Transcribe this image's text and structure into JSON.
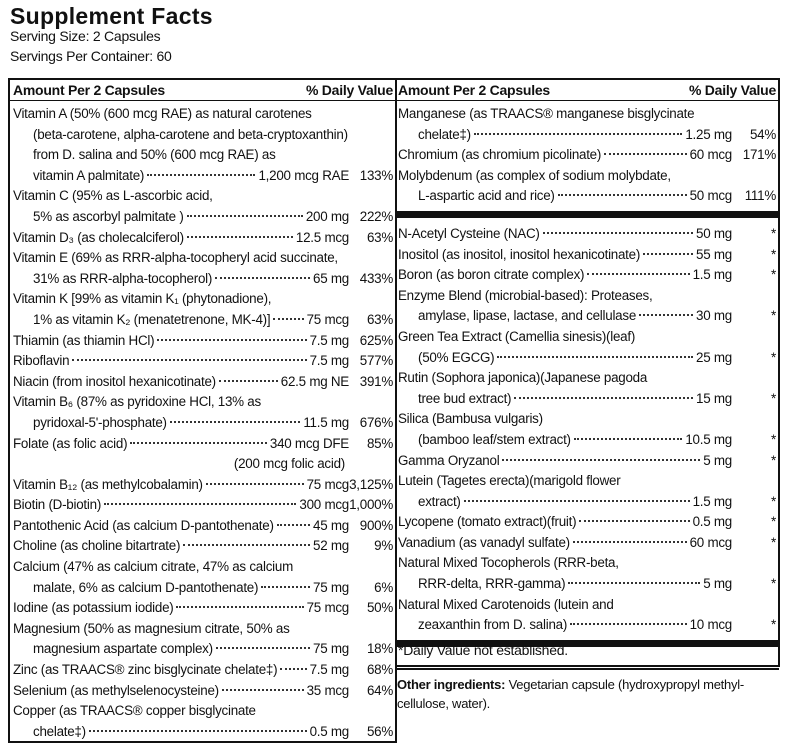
{
  "header": {
    "title": "Supplement Facts",
    "serving_size": "Serving Size: 2 Capsules",
    "servings_per_container": "Servings Per Container: 60"
  },
  "left": {
    "col_amount": "Amount Per 2 Capsules",
    "col_dv": "% Daily Value",
    "items": [
      {
        "lines": [
          "Vitamin A (50% (600 mcg RAE) as natural carotenes",
          "(beta-carotene, alpha-carotene and beta-cryptoxanthin)",
          "from D. salina and 50% (600 mcg RAE) as",
          "vitamin A palmitate)"
        ],
        "amount": "1,200 mcg RAE",
        "dv": "133%"
      },
      {
        "lines": [
          "Vitamin C (95% as L-ascorbic acid,",
          "5% as ascorbyl palmitate )"
        ],
        "amount": "200 mg",
        "dv": "222%"
      },
      {
        "lines": [
          "Vitamin D₃ (as cholecalciferol)"
        ],
        "amount": "12.5 mcg",
        "dv": "63%"
      },
      {
        "lines": [
          "Vitamin E (69% as RRR-alpha-tocopheryl acid succinate,",
          "31% as RRR-alpha-tocopherol)"
        ],
        "amount": "65 mg",
        "dv": "433%"
      },
      {
        "lines": [
          "Vitamin K [99% as vitamin K₁ (phytonadione),",
          "1% as vitamin K₂ (menatetrenone, MK-4)]"
        ],
        "amount": "75 mcg",
        "dv": "63%"
      },
      {
        "lines": [
          "Thiamin (as thiamin HCl)"
        ],
        "amount": "7.5 mg",
        "dv": "625%"
      },
      {
        "lines": [
          "Riboflavin"
        ],
        "amount": "7.5 mg",
        "dv": "577%"
      },
      {
        "lines": [
          "Niacin (from inositol hexanicotinate)"
        ],
        "amount": "62.5 mg NE",
        "dv": "391%"
      },
      {
        "lines": [
          "Vitamin B₆ (87% as pyridoxine HCl, 13% as",
          "pyridoxal-5'-phosphate)"
        ],
        "amount": "11.5 mg",
        "dv": "676%"
      },
      {
        "lines": [
          "Folate (as folic acid)"
        ],
        "amount": "340 mcg DFE",
        "dv": "85%",
        "note": "(200 mcg folic acid)"
      },
      {
        "lines": [
          "Vitamin B₁₂ (as methylcobalamin)"
        ],
        "amount": "75 mcg",
        "dv": "3,125%"
      },
      {
        "lines": [
          "Biotin (D-biotin)"
        ],
        "amount": "300 mcg",
        "dv": "1,000%"
      },
      {
        "lines": [
          "Pantothenic Acid (as calcium D-pantothenate)"
        ],
        "amount": "45 mg",
        "dv": "900%"
      },
      {
        "lines": [
          "Choline (as choline bitartrate)"
        ],
        "amount": "52 mg",
        "dv": "9%"
      },
      {
        "lines": [
          "Calcium (47% as calcium citrate, 47% as calcium",
          "malate, 6% as calcium D-pantothenate)"
        ],
        "amount": "75 mg",
        "dv": "6%"
      },
      {
        "lines": [
          "Iodine (as potassium iodide)"
        ],
        "amount": "75 mcg",
        "dv": "50%"
      },
      {
        "lines": [
          "Magnesium (50% as magnesium citrate, 50% as",
          "magnesium aspartate complex)"
        ],
        "amount": "75 mg",
        "dv": "18%"
      },
      {
        "lines": [
          "Zinc (as TRAACS® zinc bisglycinate chelate‡)"
        ],
        "amount": "7.5 mg",
        "dv": "68%"
      },
      {
        "lines": [
          "Selenium (as methylselenocysteine)"
        ],
        "amount": "35 mcg",
        "dv": "64%"
      },
      {
        "lines": [
          "Copper (as TRAACS® copper bisglycinate",
          "chelate‡)"
        ],
        "amount": "0.5 mg",
        "dv": "56%"
      }
    ]
  },
  "right": {
    "col_amount": "Amount Per 2 Capsules",
    "col_dv": "% Daily Value",
    "items": [
      {
        "lines": [
          "Manganese (as TRAACS® manganese bisglycinate",
          "chelate‡)"
        ],
        "amount": "1.25 mg",
        "dv": "54%"
      },
      {
        "lines": [
          "Chromium (as chromium picolinate)"
        ],
        "amount": "60 mcg",
        "dv": "171%"
      },
      {
        "lines": [
          "Molybdenum (as complex of sodium molybdate,",
          "L-aspartic acid and rice)"
        ],
        "amount": "50 mcg",
        "dv": "111%"
      }
    ],
    "other_items": [
      {
        "lines": [
          "N-Acetyl Cysteine (NAC)"
        ],
        "amount": "50 mg",
        "dv": "*"
      },
      {
        "lines": [
          "Inositol (as inositol, inositol hexanicotinate)"
        ],
        "amount": "55 mg",
        "dv": "*"
      },
      {
        "lines": [
          "Boron (as boron citrate complex)"
        ],
        "amount": "1.5 mg",
        "dv": "*"
      },
      {
        "lines": [
          "Enzyme Blend (microbial-based): Proteases,",
          "amylase, lipase, lactase, and cellulase"
        ],
        "amount": "30 mg",
        "dv": "*"
      },
      {
        "lines": [
          "Green Tea Extract (Camellia sinesis)(leaf)",
          "(50% EGCG)"
        ],
        "amount": "25 mg",
        "dv": "*"
      },
      {
        "lines": [
          "Rutin (Sophora japonica)(Japanese pagoda",
          "tree bud extract)"
        ],
        "amount": "15 mg",
        "dv": "*"
      },
      {
        "lines": [
          "Silica (Bambusa vulgaris)",
          "(bamboo leaf/stem extract)"
        ],
        "amount": "10.5 mg",
        "dv": "*"
      },
      {
        "lines": [
          "Gamma Oryzanol"
        ],
        "amount": "5 mg",
        "dv": "*"
      },
      {
        "lines": [
          "Lutein (Tagetes erecta)(marigold flower",
          "extract)"
        ],
        "amount": "1.5 mg",
        "dv": "*"
      },
      {
        "lines": [
          "Lycopene (tomato extract)(fruit)"
        ],
        "amount": "0.5 mg",
        "dv": "*"
      },
      {
        "lines": [
          "Vanadium (as vanadyl sulfate)"
        ],
        "amount": "60 mcg",
        "dv": "*"
      },
      {
        "lines": [
          "Natural Mixed Tocopherols (RRR-beta,",
          "RRR-delta, RRR-gamma)"
        ],
        "amount": "5 mg",
        "dv": "*"
      },
      {
        "lines": [
          "Natural Mixed Carotenoids (lutein and",
          "zeaxanthin from D. salina)"
        ],
        "amount": "10 mcg",
        "dv": "*"
      }
    ],
    "footnote": "*Daily Value not established.",
    "other_ingredients_label": "Other ingredients:",
    "other_ingredients": "Vegetarian capsule (hydroxypropyl methyl-cellulose, water)."
  }
}
